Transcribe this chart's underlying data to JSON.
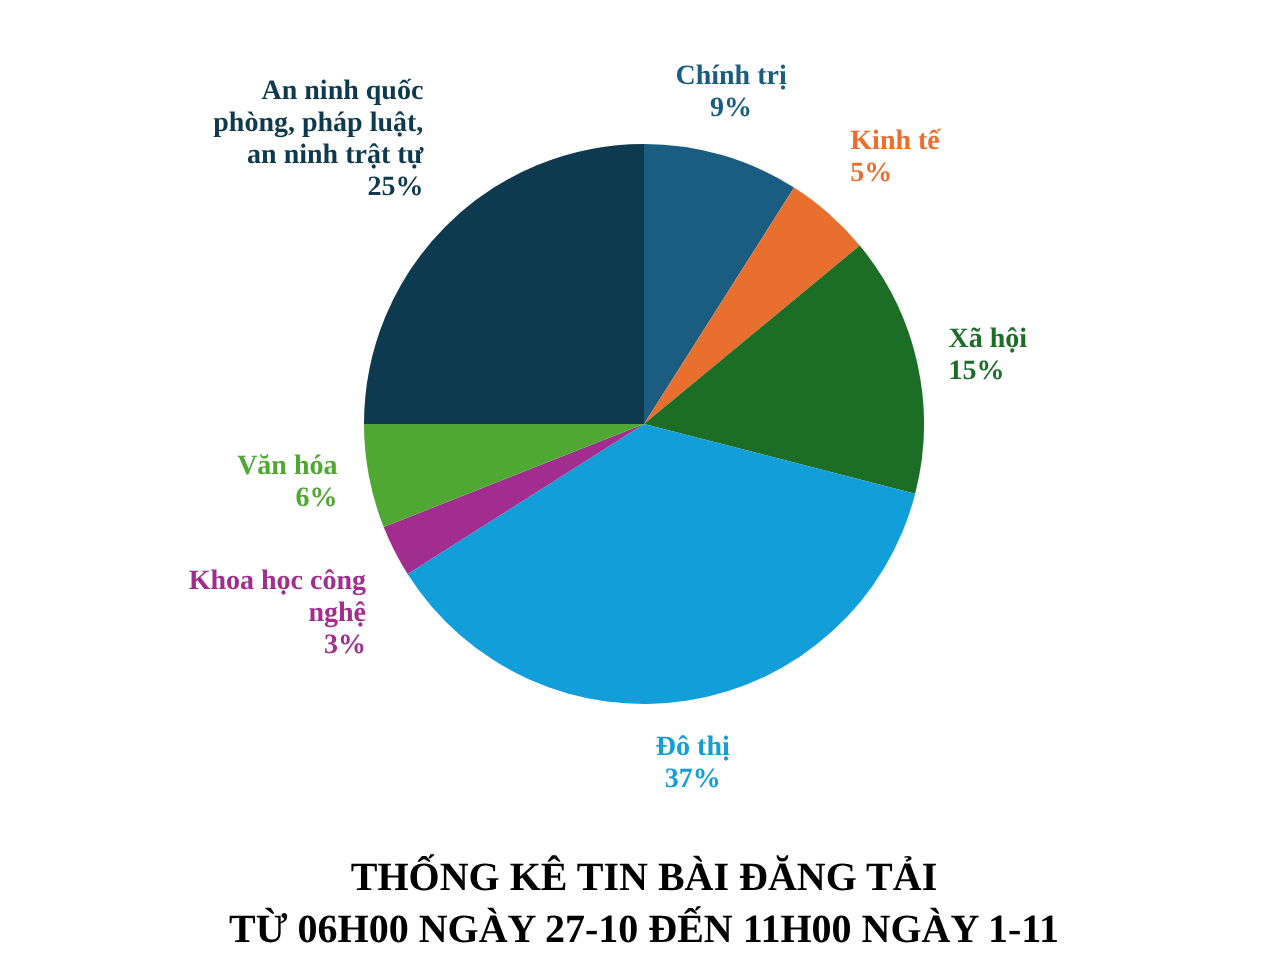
{
  "chart_data": {
    "type": "pie",
    "title": "THỐNG KÊ TIN BÀI ĐĂNG TẢI",
    "subtitle": "TỪ 06H00 NGÀY 27-10 ĐẾN 11H00 NGÀY 1-11",
    "categories": [
      "Chính trị",
      "Kinh tế",
      "Xã hội",
      "Đô thị",
      "Khoa học công nghệ",
      "Văn hóa",
      "An ninh quốc phòng, pháp luật, an ninh trật tự"
    ],
    "values": [
      9,
      5,
      15,
      37,
      3,
      6,
      25
    ],
    "colors": [
      "#1a5d80",
      "#e96f2f",
      "#1c6e27",
      "#119ed9",
      "#a12d8f",
      "#4ea832",
      "#0e3a4f"
    ],
    "value_labels": [
      "9%",
      "5%",
      "15%",
      "37%",
      "3%",
      "6%",
      "25%"
    ]
  }
}
